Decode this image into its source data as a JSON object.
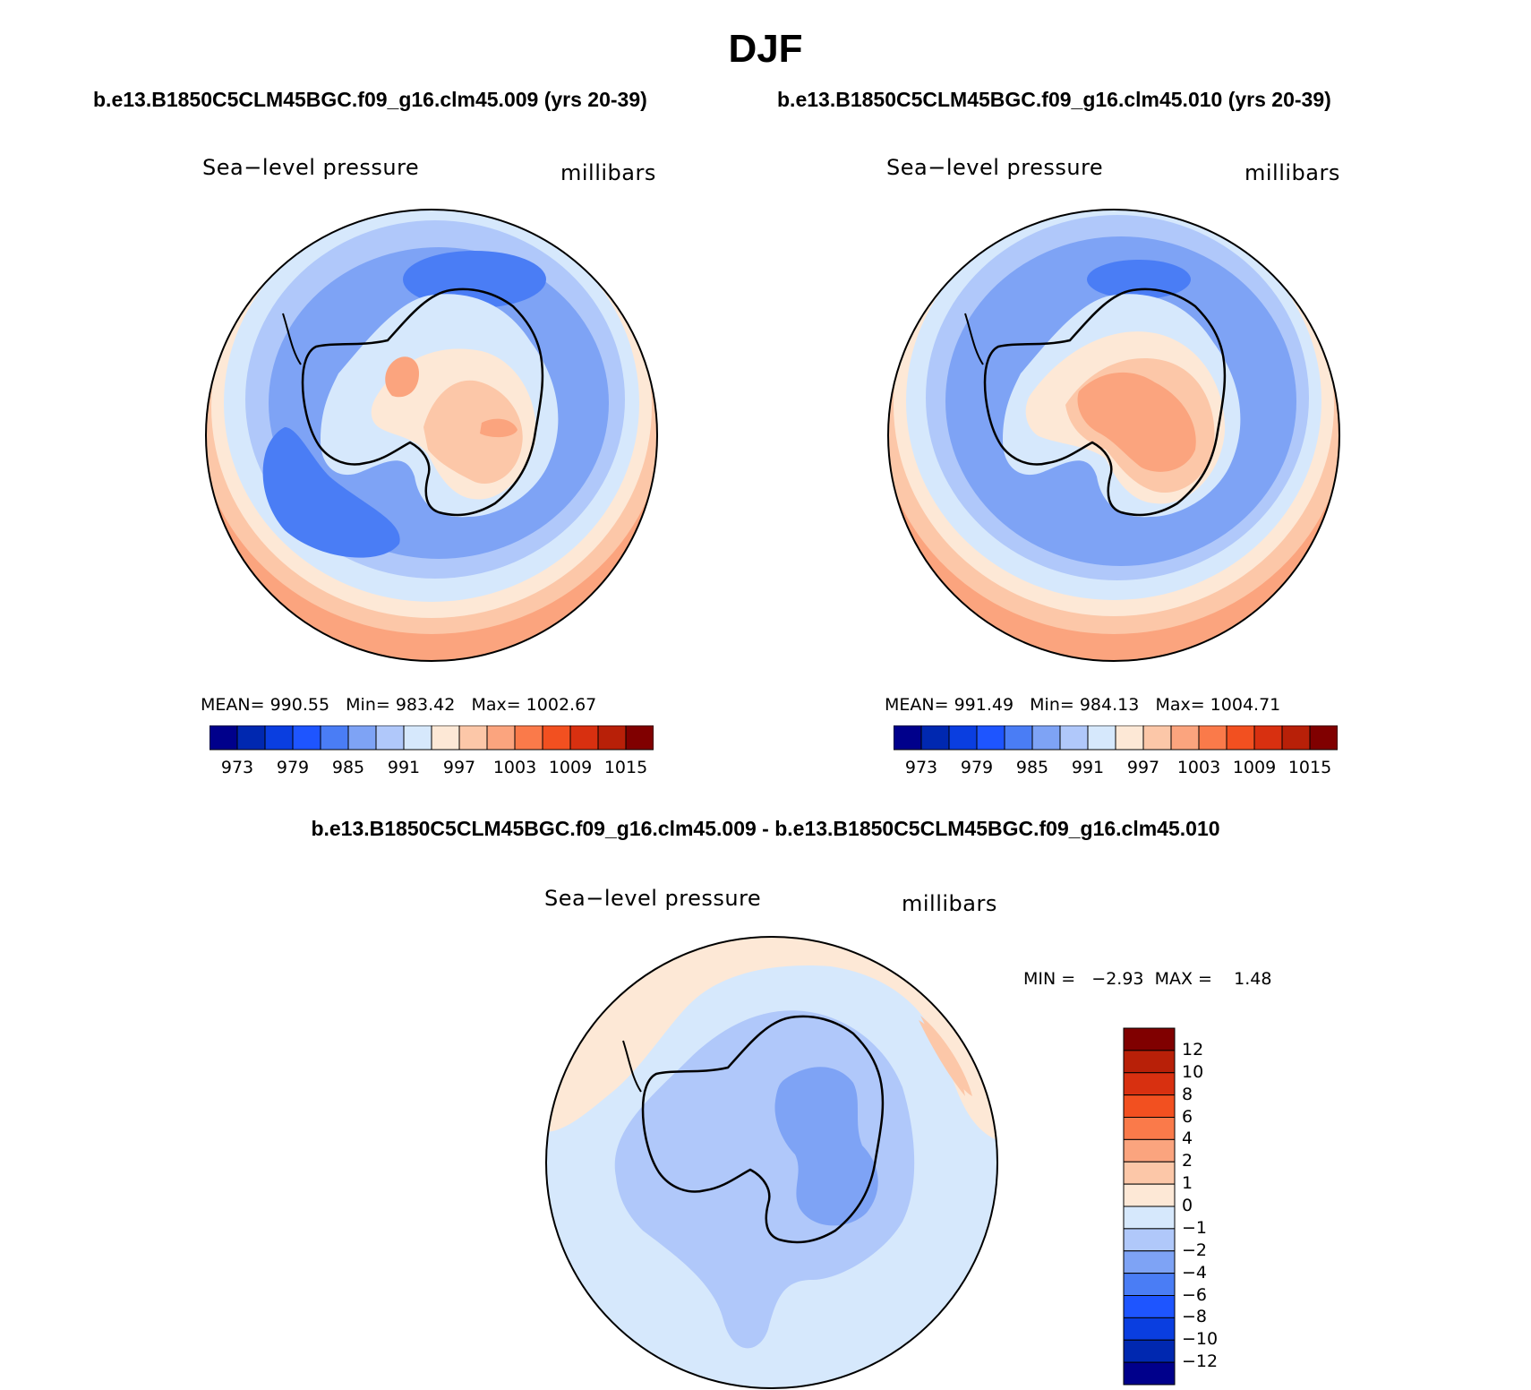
{
  "title": "DJF",
  "panels": [
    {
      "case": "b.e13.B1850C5CLM45BGC.f09_g16.clm45.009 (yrs 20-39)",
      "variable": "Sea−level pressure",
      "units": "millibars",
      "stats": "MEAN= 990.55   Min= 983.42   Max= 1002.67"
    },
    {
      "case": "b.e13.B1850C5CLM45BGC.f09_g16.clm45.010 (yrs 20-39)",
      "variable": "Sea−level pressure",
      "units": "millibars",
      "stats": "MEAN= 991.49   Min= 984.13   Max= 1004.71"
    }
  ],
  "difference": {
    "title": "b.e13.B1850C5CLM45BGC.f09_g16.clm45.009 - b.e13.B1850C5CLM45BGC.f09_g16.clm45.010",
    "variable": "Sea−level pressure",
    "units": "millibars",
    "stats": "MIN =   −2.93  MAX =    1.48"
  },
  "abs_colorbar": {
    "colors": [
      "#00008b",
      "#0028b0",
      "#0a3ee0",
      "#1e55ff",
      "#4a7df5",
      "#7ea3f5",
      "#b0c8fa",
      "#d6e8fc",
      "#fde8d6",
      "#fcc7a8",
      "#fba47e",
      "#fa7a4a",
      "#f25020",
      "#d83010",
      "#b82008",
      "#800000"
    ],
    "labels": [
      "973",
      "979",
      "985",
      "991",
      "997",
      "1003",
      "1009",
      "1015"
    ]
  },
  "diff_colorbar": {
    "colors": [
      "#800000",
      "#b82008",
      "#d83010",
      "#f25020",
      "#fa7a4a",
      "#fba47e",
      "#fcc7a8",
      "#fde8d6",
      "#d6e8fc",
      "#b0c8fa",
      "#7ea3f5",
      "#4a7df5",
      "#1e55ff",
      "#0a3ee0",
      "#0028b0",
      "#00008b"
    ],
    "labels": [
      "12",
      "10",
      "8",
      "6",
      "4",
      "2",
      "1",
      "0",
      "−1",
      "−2",
      "−4",
      "−6",
      "−8",
      "−10",
      "−12"
    ]
  }
}
